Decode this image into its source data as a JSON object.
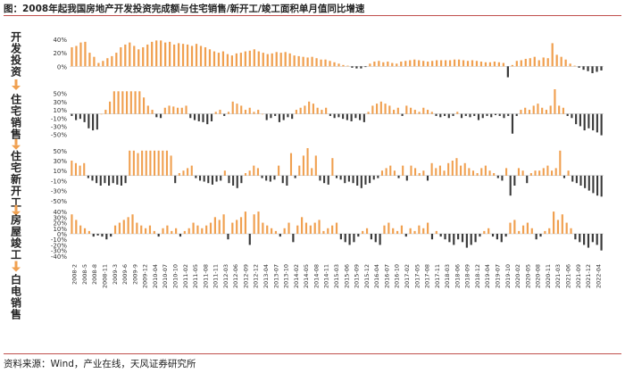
{
  "figure_title": "图：2008年起我国房地产开发投资完成额与住宅销售/新开工/竣工面积单月值同比增速",
  "source": "资料来源：Wind，产业在线，天风证券研究所",
  "colors": {
    "orange": "#f0a050",
    "dark": "#3a3a3a",
    "arrow": "#f0a050",
    "rule": "#c0504d"
  },
  "panel_labels": [
    "开发投资",
    "住宅销售",
    "住宅新开工",
    "房屋竣工",
    "白电销售"
  ],
  "chart_data": [
    {
      "type": "bar",
      "name": "开发投资",
      "yticks": [
        "40%",
        "20%",
        "0%"
      ],
      "ylim": [
        -10,
        45
      ],
      "values": [
        28,
        30,
        35,
        36,
        20,
        14,
        5,
        8,
        12,
        15,
        20,
        28,
        32,
        35,
        30,
        25,
        28,
        32,
        36,
        38,
        38,
        35,
        36,
        32,
        34,
        33,
        32,
        30,
        33,
        30,
        28,
        25,
        22,
        20,
        22,
        18,
        16,
        19,
        20,
        22,
        23,
        25,
        22,
        20,
        18,
        19,
        21,
        20,
        21,
        19,
        16,
        15,
        14,
        13,
        14,
        12,
        10,
        10,
        8,
        6,
        4,
        2,
        1,
        -2,
        -3,
        -3,
        -1,
        4,
        7,
        8,
        6,
        7,
        5,
        4,
        7,
        8,
        9,
        10,
        9,
        8,
        7,
        8,
        9,
        9,
        9,
        9,
        10,
        10,
        9,
        8,
        9,
        8,
        7,
        6,
        6,
        7,
        6,
        5,
        -16,
        2,
        8,
        9,
        11,
        12,
        14,
        9,
        13,
        12,
        34,
        17,
        14,
        10,
        4,
        1,
        -2,
        -5,
        -7,
        -10,
        -8,
        -6
      ]
    },
    {
      "type": "bar",
      "name": "住宅销售",
      "yticks": [
        "50%",
        "30%",
        "10%",
        "-10%",
        "-30%",
        "-50%"
      ],
      "ylim": [
        -55,
        60
      ],
      "values": [
        -5,
        -15,
        -12,
        -20,
        -35,
        -40,
        -38,
        0,
        10,
        30,
        55,
        55,
        55,
        55,
        55,
        55,
        55,
        40,
        20,
        10,
        -8,
        -10,
        15,
        20,
        18,
        15,
        15,
        20,
        -10,
        -15,
        -18,
        -20,
        -25,
        -18,
        5,
        10,
        -5,
        5,
        30,
        25,
        20,
        10,
        15,
        5,
        10,
        0,
        -15,
        -10,
        -5,
        -20,
        -15,
        -8,
        -12,
        10,
        15,
        20,
        30,
        25,
        15,
        10,
        15,
        -5,
        -10,
        -8,
        -12,
        -15,
        -18,
        -10,
        -15,
        -20,
        5,
        20,
        25,
        30,
        25,
        20,
        10,
        15,
        -5,
        20,
        15,
        10,
        5,
        15,
        10,
        5,
        -5,
        -8,
        -5,
        -10,
        -5,
        5,
        -10,
        -5,
        -8,
        -5,
        -15,
        -10,
        -5,
        -8,
        -3,
        -5,
        -10,
        -5,
        -48,
        -5,
        10,
        15,
        10,
        20,
        25,
        15,
        10,
        20,
        60,
        20,
        15,
        -5,
        -10,
        -25,
        -30,
        -40,
        -35,
        -40,
        -45,
        -52
      ]
    },
    {
      "type": "bar",
      "name": "住宅新开工",
      "yticks": [
        "50%",
        "30%",
        "10%",
        "-10%",
        "-30%",
        "-50%"
      ],
      "ylim": [
        -45,
        55
      ],
      "values": [
        30,
        25,
        20,
        25,
        -5,
        -10,
        -15,
        -20,
        -15,
        -20,
        -15,
        -18,
        -20,
        -15,
        50,
        50,
        45,
        50,
        50,
        50,
        50,
        50,
        50,
        50,
        40,
        -15,
        5,
        10,
        15,
        20,
        -5,
        -10,
        -12,
        -15,
        -18,
        -12,
        -10,
        10,
        -15,
        -20,
        -25,
        -15,
        5,
        10,
        20,
        15,
        -5,
        -10,
        -12,
        -8,
        20,
        -15,
        -20,
        45,
        -5,
        20,
        40,
        55,
        15,
        40,
        -10,
        -15,
        -18,
        35,
        -5,
        -8,
        -15,
        -12,
        -15,
        -20,
        -25,
        -18,
        -15,
        -8,
        -5,
        10,
        15,
        20,
        10,
        -5,
        20,
        -10,
        20,
        15,
        5,
        10,
        -10,
        25,
        15,
        20,
        10,
        25,
        30,
        35,
        20,
        25,
        15,
        10,
        5,
        15,
        20,
        10,
        5,
        -5,
        -10,
        15,
        -40,
        -20,
        15,
        10,
        -15,
        5,
        10,
        10,
        15,
        20,
        10,
        15,
        50,
        -5,
        10,
        -12,
        -15,
        -20,
        -25,
        -30,
        -35,
        -40,
        -42
      ]
    },
    {
      "type": "bar",
      "name": "房屋竣工",
      "yticks": [
        "40%",
        "30%",
        "20%",
        "10%",
        "0%",
        "-10%",
        "-20%",
        "-30%",
        "-40%"
      ],
      "ylim": [
        -45,
        45
      ],
      "values": [
        35,
        25,
        15,
        10,
        5,
        -5,
        -3,
        -5,
        -10,
        -5,
        15,
        20,
        25,
        30,
        35,
        20,
        15,
        10,
        15,
        5,
        -5,
        10,
        15,
        5,
        10,
        -5,
        5,
        10,
        20,
        15,
        10,
        15,
        20,
        30,
        25,
        35,
        -10,
        20,
        25,
        30,
        40,
        -20,
        35,
        40,
        20,
        15,
        10,
        5,
        -5,
        10,
        20,
        -15,
        15,
        30,
        20,
        15,
        20,
        25,
        5,
        10,
        15,
        20,
        -10,
        -15,
        -20,
        -15,
        -5,
        5,
        10,
        -10,
        -15,
        -20,
        15,
        20,
        10,
        5,
        15,
        -5,
        10,
        5,
        15,
        10,
        20,
        -10,
        5,
        -5,
        -10,
        -15,
        -20,
        -10,
        -15,
        -25,
        -20,
        -15,
        -5,
        5,
        10,
        -5,
        -10,
        -15,
        -5,
        20,
        25,
        5,
        15,
        20,
        10,
        -10,
        -5,
        5,
        10,
        40,
        25,
        35,
        20,
        10,
        -10,
        -15,
        -20,
        -25,
        -15,
        -20,
        -30
      ]
    }
  ],
  "x_ticks": [
    "2008-2",
    "2008-5",
    "2008-8",
    "2008-11",
    "2009-3",
    "2009-6",
    "2009-9",
    "2009-12",
    "2010-04",
    "2010-07",
    "2010-10",
    "2011-02",
    "2011-05",
    "2011-08",
    "2011-11",
    "2012-03",
    "2012-06",
    "2012-09",
    "2012-12",
    "2013-04",
    "2013-07",
    "2013-10",
    "2014-02",
    "2014-05",
    "2014-08",
    "2014-11",
    "2015-03",
    "2015-06",
    "2015-09",
    "2015-12",
    "2016-04",
    "2016-07",
    "2016-10",
    "2017-02",
    "2017-05",
    "2017-08",
    "2017-11",
    "2018-03",
    "2018-06",
    "2018-09",
    "2018-12",
    "2019-04",
    "2019-07",
    "2019-10",
    "2020-02",
    "2020-05",
    "2020-08",
    "2020-11",
    "2021-03",
    "2021-06",
    "2021-09",
    "2021-12",
    "2022-04"
  ]
}
